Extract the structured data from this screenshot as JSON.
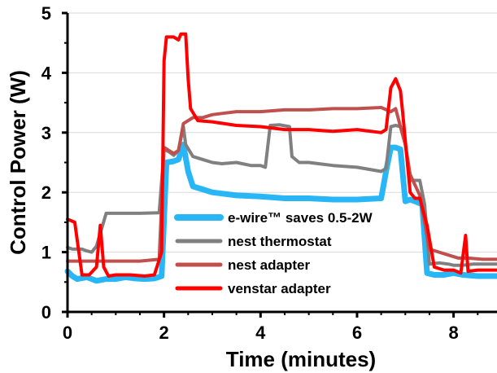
{
  "chart_data": {
    "type": "line",
    "xlabel": "Time (minutes)",
    "ylabel": "Control Power (W)",
    "xlim": [
      0,
      8.9
    ],
    "ylim": [
      0,
      5
    ],
    "x_ticks": [
      "0",
      "2",
      "4",
      "6",
      "8"
    ],
    "y_ticks": [
      "0",
      "1",
      "2",
      "3",
      "4",
      "5"
    ],
    "grid": "horizontal",
    "legend_position": "lower-left inside plot",
    "series": [
      {
        "name": "e-wire™ saves 0.5-2W",
        "color": "#29b6f6",
        "x": [
          0,
          0.1,
          0.2,
          0.4,
          0.6,
          0.8,
          1.0,
          1.2,
          1.4,
          1.6,
          1.8,
          1.95,
          2.05,
          2.2,
          2.3,
          2.4,
          2.5,
          2.6,
          2.8,
          3.0,
          3.2,
          3.5,
          4.0,
          4.5,
          5.0,
          5.5,
          6.0,
          6.5,
          6.6,
          6.7,
          6.8,
          6.9,
          7.0,
          7.1,
          7.2,
          7.35,
          7.45,
          7.6,
          7.8,
          8.0,
          8.2,
          8.5,
          8.9
        ],
        "y": [
          0.68,
          0.6,
          0.55,
          0.58,
          0.52,
          0.55,
          0.55,
          0.58,
          0.56,
          0.55,
          0.56,
          0.6,
          2.5,
          2.52,
          2.55,
          2.8,
          2.35,
          2.1,
          2.05,
          2.0,
          1.98,
          1.95,
          1.93,
          1.9,
          1.9,
          1.88,
          1.88,
          1.9,
          2.35,
          2.75,
          2.75,
          2.72,
          1.85,
          1.88,
          1.85,
          1.8,
          0.65,
          0.62,
          0.62,
          0.65,
          0.62,
          0.6,
          0.6
        ]
      },
      {
        "name": "nest thermostat",
        "color": "#808080",
        "x": [
          0,
          0.1,
          0.3,
          0.4,
          0.5,
          0.6,
          0.8,
          1.0,
          1.5,
          1.9,
          2.0,
          2.1,
          2.2,
          2.3,
          2.4,
          2.45,
          2.6,
          2.8,
          3.0,
          3.2,
          3.5,
          3.8,
          4.0,
          4.1,
          4.2,
          4.4,
          4.6,
          4.65,
          4.8,
          5.0,
          5.5,
          6.0,
          6.5,
          6.6,
          6.7,
          6.8,
          6.9,
          7.0,
          7.1,
          7.2,
          7.3,
          7.4,
          7.5,
          7.7,
          7.9,
          8.0,
          8.2,
          8.4,
          8.6,
          8.9
        ],
        "y": [
          1.08,
          1.05,
          1.05,
          1.02,
          1.0,
          1.1,
          1.65,
          1.65,
          1.65,
          1.66,
          2.72,
          2.68,
          2.62,
          2.7,
          3.1,
          2.8,
          2.6,
          2.55,
          2.5,
          2.48,
          2.5,
          2.45,
          2.45,
          2.42,
          3.12,
          3.13,
          3.1,
          2.6,
          2.5,
          2.5,
          2.45,
          2.42,
          2.35,
          2.4,
          3.1,
          3.12,
          3.1,
          2.8,
          2.2,
          2.2,
          2.2,
          1.8,
          0.8,
          0.82,
          0.8,
          0.78,
          0.78,
          0.8,
          0.8,
          0.8
        ]
      },
      {
        "name": "nest adapter",
        "color": "#c0504d",
        "x": [
          0,
          0.5,
          1.0,
          1.5,
          1.9,
          2.0,
          2.2,
          2.3,
          2.4,
          2.5,
          2.6,
          2.8,
          3.0,
          3.2,
          3.5,
          4.0,
          4.5,
          5.0,
          5.5,
          6.0,
          6.5,
          6.7,
          6.8,
          6.9,
          7.0,
          7.1,
          7.3,
          7.5,
          7.7,
          7.9,
          8.1,
          8.3,
          8.6,
          8.9
        ],
        "y": [
          0.85,
          0.85,
          0.85,
          0.85,
          0.88,
          2.75,
          2.65,
          2.7,
          3.15,
          3.2,
          3.25,
          3.25,
          3.3,
          3.32,
          3.35,
          3.35,
          3.38,
          3.38,
          3.4,
          3.4,
          3.42,
          3.35,
          3.4,
          3.1,
          2.8,
          2.3,
          1.95,
          1.05,
          1.0,
          0.95,
          0.9,
          0.9,
          0.88,
          0.88
        ]
      },
      {
        "name": "venstar adapter",
        "color": "#ff0000",
        "x": [
          0,
          0.15,
          0.3,
          0.45,
          0.6,
          0.68,
          0.75,
          0.85,
          1.0,
          1.3,
          1.6,
          1.8,
          1.95,
          2.0,
          2.05,
          2.2,
          2.3,
          2.35,
          2.45,
          2.5,
          2.55,
          2.7,
          3.0,
          3.5,
          4.0,
          4.5,
          5.0,
          5.5,
          6.0,
          6.5,
          6.6,
          6.7,
          6.8,
          6.9,
          6.95,
          7.1,
          7.2,
          7.3,
          7.45,
          7.6,
          7.8,
          8.0,
          8.15,
          8.25,
          8.3,
          8.5,
          8.9
        ],
        "y": [
          1.55,
          1.5,
          0.62,
          0.62,
          0.75,
          1.45,
          0.75,
          0.6,
          0.62,
          0.62,
          0.6,
          0.62,
          1.0,
          4.2,
          4.6,
          4.6,
          4.55,
          4.65,
          4.65,
          3.9,
          3.4,
          3.2,
          3.18,
          3.12,
          3.1,
          3.05,
          3.05,
          3.02,
          3.05,
          3.0,
          3.05,
          3.75,
          3.9,
          3.7,
          3.3,
          2.0,
          1.9,
          1.9,
          1.45,
          0.75,
          0.7,
          0.7,
          0.65,
          1.28,
          0.68,
          0.7,
          0.7
        ]
      }
    ]
  }
}
